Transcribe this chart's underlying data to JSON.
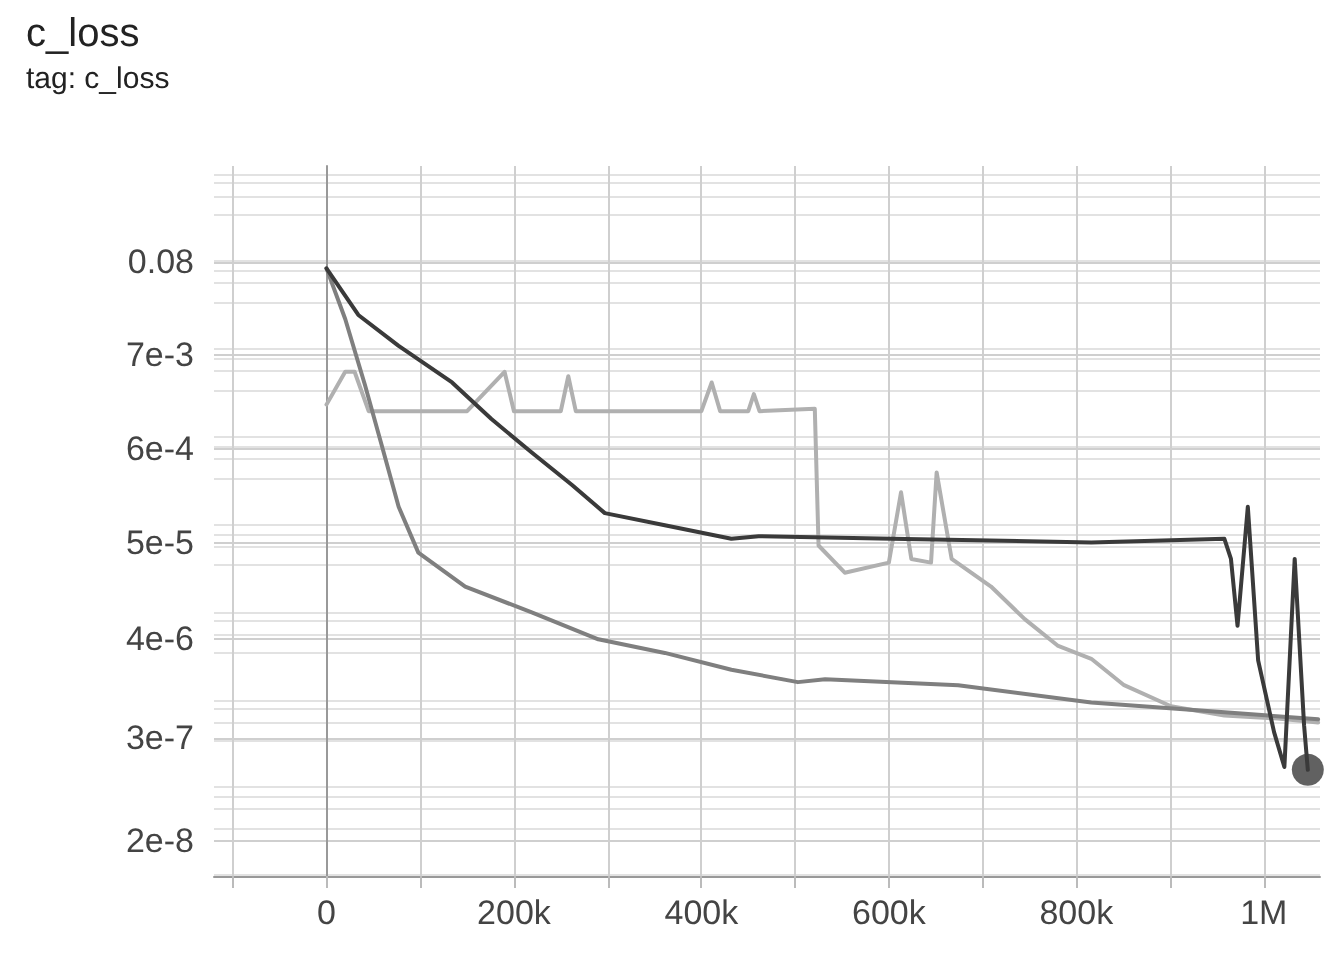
{
  "chart_data": {
    "type": "line",
    "title": "c_loss",
    "subtitle": "tag: c_loss",
    "log": "y",
    "grid": true,
    "marker": "none",
    "line_style": "solid",
    "xlim": [
      -120000,
      1060000
    ],
    "xticks": [
      {
        "value": -100000,
        "label": null
      },
      0,
      {
        "value": 100000,
        "label": null
      },
      {
        "value": 200000,
        "label": "200k"
      },
      {
        "value": 300000,
        "label": null
      },
      {
        "value": 400000,
        "label": "400k"
      },
      {
        "value": 500000,
        "label": null
      },
      {
        "value": 600000,
        "label": "600k"
      },
      {
        "value": 700000,
        "label": null
      },
      {
        "value": 800000,
        "label": "800k"
      },
      {
        "value": 900000,
        "label": null
      },
      {
        "value": 1000000,
        "label": "1M"
      }
    ],
    "ylim": [
      8e-09,
      1
    ],
    "yticks": [
      {
        "value": 2e-08,
        "label": "2e-8"
      },
      {
        "value": 3e-07,
        "label": "3e-7"
      },
      {
        "value": 4e-06,
        "label": "4e-6"
      },
      {
        "value": 5e-05,
        "label": "5e-5"
      },
      {
        "value": 0.0006,
        "label": "6e-4"
      },
      {
        "value": 0.007,
        "label": "7e-3"
      },
      0.08
    ],
    "series": [
      {
        "color": "#b0b0b0",
        "x": [
          0,
          20000,
          30000,
          45000,
          60000,
          150000,
          190000,
          200000,
          250000,
          258000,
          266000,
          400000,
          411000,
          420000,
          450000,
          456000,
          462000,
          521000,
          525000,
          553000,
          600000,
          613000,
          624000,
          645000,
          651000,
          667000,
          709000,
          745000,
          780000,
          816000,
          851000,
          901000,
          958000,
          1015000,
          1058000
        ],
        "values": [
          0.0019,
          0.0045,
          0.0045,
          0.0016,
          0.0016,
          0.0016,
          0.0045,
          0.0016,
          0.0016,
          0.004,
          0.0016,
          0.0016,
          0.0034,
          0.0016,
          0.0016,
          0.0025,
          0.0016,
          0.0017,
          4.7e-05,
          2.3e-05,
          3e-05,
          0.00019,
          3.3e-05,
          3e-05,
          0.00032,
          3.3e-05,
          1.6e-05,
          6.8e-06,
          3.4e-06,
          2.4e-06,
          1.2e-06,
          6.9e-07,
          5.4e-07,
          5e-07,
          4.5e-07
        ]
      },
      {
        "color": "#7f7f7f",
        "x": [
          0,
          20000,
          41000,
          59000,
          77000,
          98000,
          148000,
          219000,
          290000,
          361000,
          432000,
          503000,
          532000,
          674000,
          816000,
          958000,
          1058000
        ],
        "values": [
          0.068,
          0.018,
          0.0032,
          0.00065,
          0.00013,
          3.9e-05,
          1.6e-05,
          8.1e-06,
          4e-06,
          2.8e-06,
          1.8e-06,
          1.3e-06,
          1.4e-06,
          1.2e-06,
          7.6e-07,
          5.9e-07,
          4.9e-07
        ]
      },
      {
        "color": "#3a3a3a",
        "x": [
          0,
          34000,
          77000,
          134000,
          176000,
          219000,
          262000,
          297000,
          361000,
          432000,
          461000,
          603000,
          816000,
          958000,
          965000,
          972000,
          983000,
          994000,
          1011000,
          1022000,
          1033000,
          1043000,
          1047000
        ],
        "values": [
          0.068,
          0.02,
          0.0089,
          0.0034,
          0.0013,
          0.00054,
          0.00023,
          0.00011,
          8e-05,
          5.6e-05,
          6e-05,
          5.6e-05,
          5.1e-05,
          5.6e-05,
          3.3e-05,
          5.7e-06,
          0.00013,
          2.3e-06,
          3.5e-07,
          1.4e-07,
          3.3e-05,
          4.2e-07,
          1.3e-07
        ]
      },
      {
        "type": "scatter",
        "marker": "circle",
        "color": "#3a3a3a",
        "x": [
          1047000
        ],
        "values": [
          1.3e-07
        ]
      }
    ]
  }
}
